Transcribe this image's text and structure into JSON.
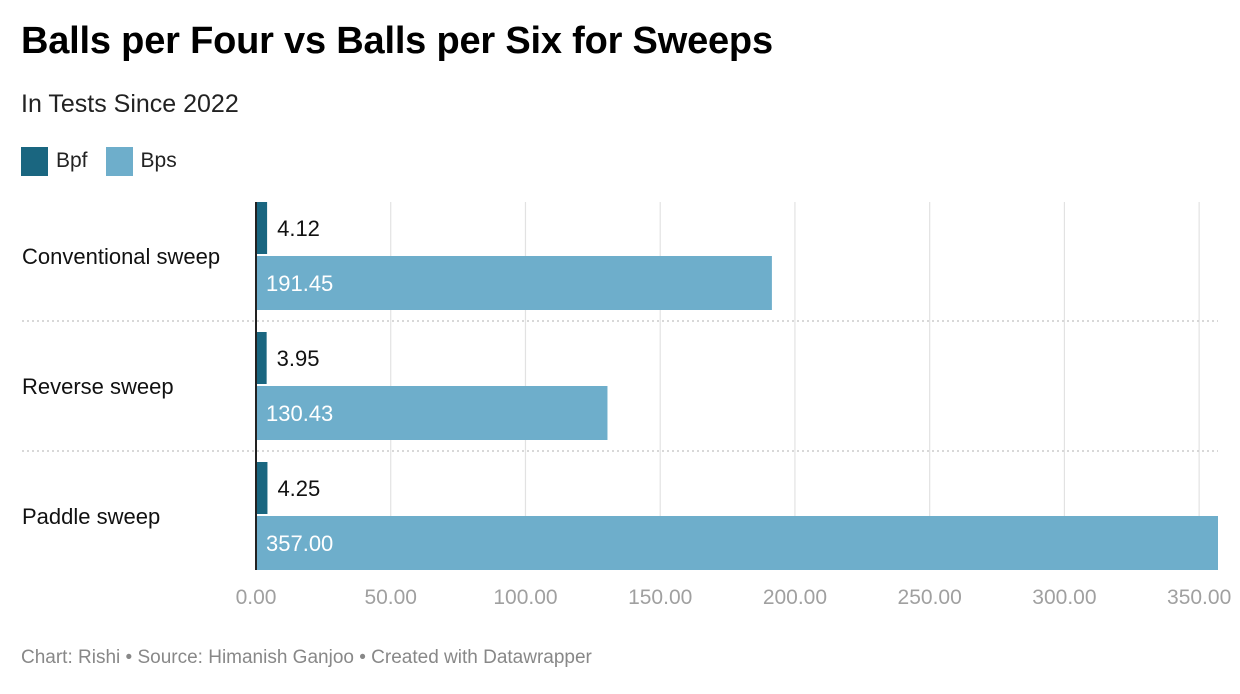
{
  "chart_data": {
    "type": "bar",
    "orientation": "horizontal",
    "title": "Balls per Four vs Balls per Six for Sweeps",
    "subtitle": "In Tests Since 2022",
    "categories": [
      "Conventional sweep",
      "Reverse sweep",
      "Paddle sweep"
    ],
    "series": [
      {
        "name": "Bpf",
        "color": "#1a6680",
        "values": [
          4.12,
          3.95,
          4.25
        ],
        "labels": [
          "4.12",
          "3.95",
          "4.25"
        ],
        "label_color": "#111111"
      },
      {
        "name": "Bps",
        "color": "#6eaecb",
        "values": [
          191.45,
          130.43,
          357.0
        ],
        "labels": [
          "191.45",
          "130.43",
          "357.00"
        ],
        "label_color": "#ffffff"
      }
    ],
    "xlim": [
      0,
      357
    ],
    "x_ticks": [
      0,
      50,
      100,
      150,
      200,
      250,
      300,
      350
    ],
    "x_tick_labels": [
      "0.00",
      "50.00",
      "100.00",
      "150.00",
      "200.00",
      "250.00",
      "300.00",
      "350.00"
    ],
    "grid": true,
    "legend_position": "top-left"
  },
  "footer": "Chart: Rishi • Source: Himanish Ganjoo • Created with Datawrapper"
}
